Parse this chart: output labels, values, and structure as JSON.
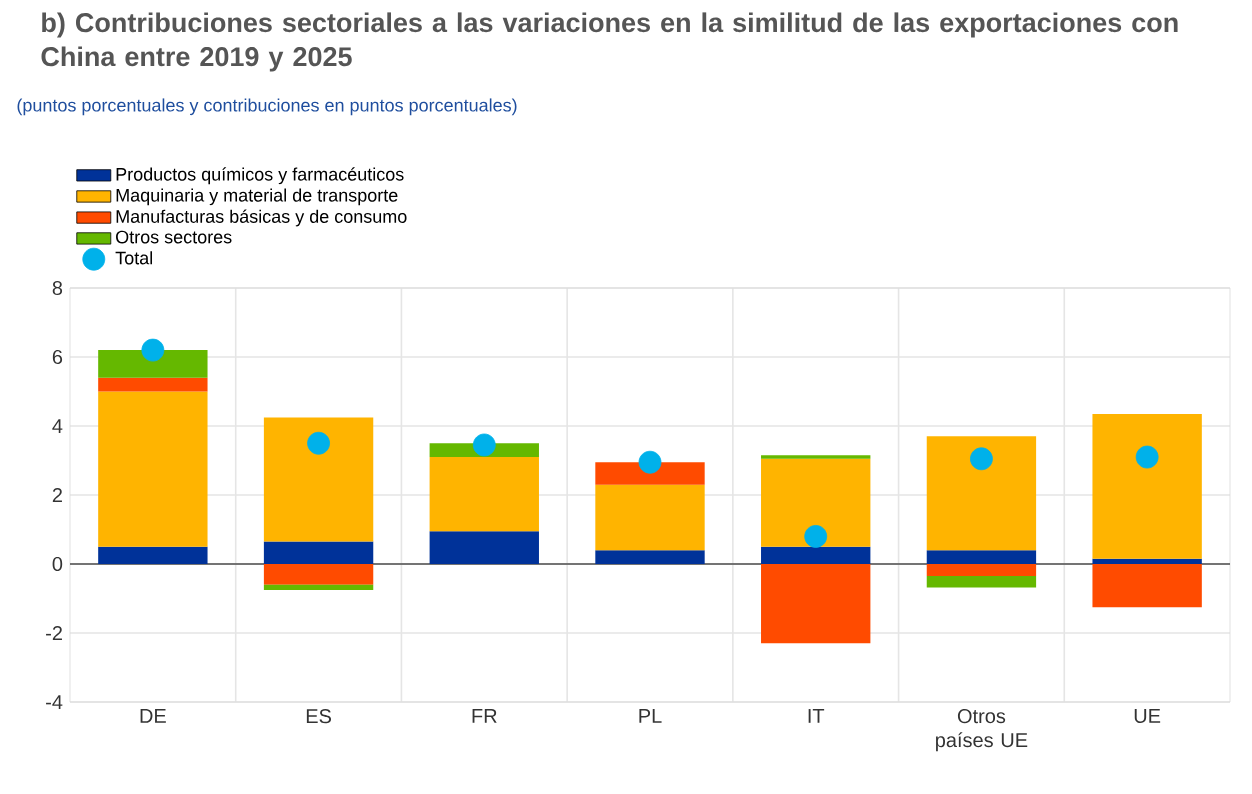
{
  "chart_data": {
    "type": "bar",
    "title": "b) Contribuciones sectoriales a las variaciones en la similitud de las exportaciones con China entre 2019 y 2025",
    "subtitle": "(puntos porcentuales y contribuciones en puntos porcentuales)",
    "categories": [
      "DE",
      "ES",
      "FR",
      "PL",
      "IT",
      "Otros países UE",
      "UE"
    ],
    "stacked": true,
    "grid": true,
    "legend": "top left",
    "ylim": [
      -4,
      8
    ],
    "yticks": [
      -4,
      -2,
      0,
      2,
      4,
      6,
      8
    ],
    "series": [
      {
        "name": "Productos químicos y farmacéuticos",
        "color": "#003299",
        "values": [
          0.5,
          0.65,
          0.95,
          0.4,
          0.5,
          0.4,
          0.15
        ]
      },
      {
        "name": "Maquinaria y material de transporte",
        "color": "#ffb400",
        "values": [
          4.5,
          3.6,
          2.15,
          1.9,
          2.55,
          3.3,
          4.2
        ]
      },
      {
        "name": "Manufacturas básicas y de consumo",
        "color": "#ff4b00",
        "values": [
          0.4,
          -0.6,
          null,
          0.65,
          -2.3,
          -0.35,
          -1.25
        ]
      },
      {
        "name": "Otros sectores",
        "color": "#65b800",
        "values": [
          0.8,
          -0.15,
          0.4,
          null,
          0.1,
          -0.33,
          null
        ]
      },
      {
        "name": "Total",
        "type": "scatter",
        "marker": "circle",
        "color": "#00b1ea",
        "values": [
          6.2,
          3.5,
          3.45,
          2.95,
          0.8,
          3.05,
          3.1
        ]
      }
    ]
  }
}
